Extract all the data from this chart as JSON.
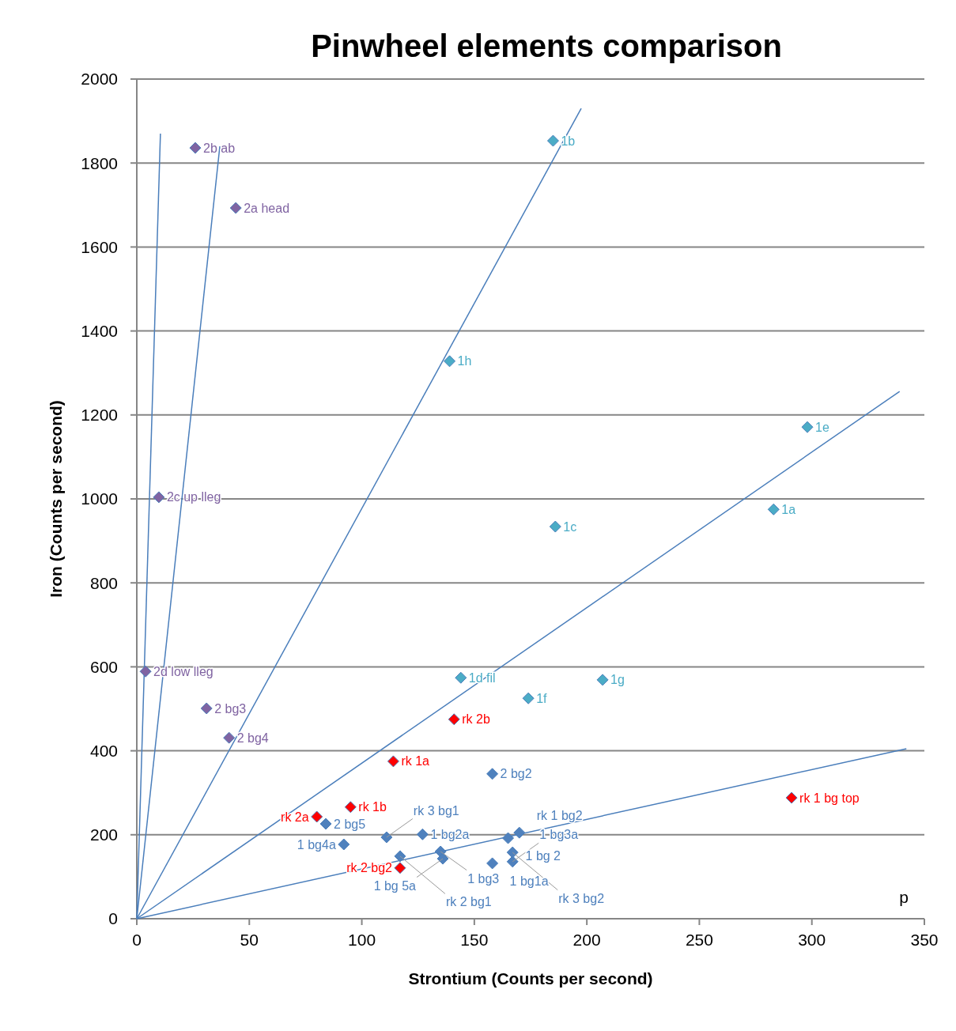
{
  "chart_data": {
    "type": "scatter",
    "title": "Pinwheel elements comparison",
    "xlabel": "Strontium (Counts per second)",
    "ylabel": "Iron (Counts per second)",
    "xlim": [
      0,
      350
    ],
    "xticks": [
      0,
      50,
      100,
      150,
      200,
      250,
      300,
      350
    ],
    "ylim": [
      0,
      2000
    ],
    "yticks": [
      0,
      200,
      400,
      600,
      800,
      1000,
      1200,
      1400,
      1600,
      1800,
      2000
    ],
    "grid": "y",
    "marker": "diamond",
    "series": [
      {
        "color": "#8064a2",
        "x": [
          26,
          44,
          9.8,
          3.9,
          31,
          41
        ],
        "values": [
          1836,
          1693,
          1004,
          589,
          501,
          431
        ]
      },
      {
        "color": "#4bacc6",
        "x": [
          185,
          139,
          298,
          283,
          186,
          144,
          207,
          174
        ],
        "values": [
          1853,
          1328,
          1171,
          975,
          934,
          574,
          569,
          525
        ]
      },
      {
        "color": "#ff0000",
        "x": [
          114,
          141,
          80,
          95,
          117,
          291
        ],
        "values": [
          375,
          475,
          243,
          266,
          121,
          288
        ]
      },
      {
        "color": "#4f81bd",
        "x": [
          158,
          84,
          92,
          127,
          135,
          136,
          158,
          165,
          167,
          111,
          117,
          170,
          167
        ],
        "values": [
          345,
          226,
          177,
          201,
          160,
          143,
          132,
          192,
          136,
          194,
          149,
          205,
          158
        ]
      },
      {
        "type": "line",
        "color": "#4a7ebb",
        "marker": "none",
        "x": [
          0,
          10.5
        ],
        "values": [
          0,
          1870
        ]
      },
      {
        "type": "line",
        "color": "#4a7ebb",
        "marker": "none",
        "x": [
          0,
          36.9
        ],
        "values": [
          0,
          1840
        ]
      },
      {
        "type": "line",
        "color": "#4a7ebb",
        "marker": "none",
        "x": [
          0,
          197.5
        ],
        "values": [
          0,
          1930
        ]
      },
      {
        "type": "line",
        "color": "#4a7ebb",
        "marker": "none",
        "x": [
          0,
          339
        ],
        "values": [
          0,
          1256
        ]
      },
      {
        "type": "line",
        "color": "#4a7ebb",
        "marker": "none",
        "x": [
          0,
          342
        ],
        "values": [
          0,
          405
        ]
      }
    ],
    "annotations": [
      {
        "text": "2b ab",
        "x": 26,
        "y": 1836
      },
      {
        "text": "2a head",
        "x": 44,
        "y": 1693
      },
      {
        "text": "2c up lleg",
        "x": 9.8,
        "y": 1004
      },
      {
        "text": "2d low lleg",
        "x": 3.9,
        "y": 589
      },
      {
        "text": "2 bg3",
        "x": 31,
        "y": 501
      },
      {
        "text": "2 bg4",
        "x": 41,
        "y": 431
      },
      {
        "text": "1b",
        "x": 185,
        "y": 1853
      },
      {
        "text": "1h",
        "x": 139,
        "y": 1328
      },
      {
        "text": "1e",
        "x": 298,
        "y": 1171
      },
      {
        "text": "1a",
        "x": 283,
        "y": 975
      },
      {
        "text": "1c",
        "x": 186,
        "y": 934
      },
      {
        "text": "1d fil",
        "x": 144,
        "y": 574
      },
      {
        "text": "1g",
        "x": 207,
        "y": 569
      },
      {
        "text": "1f",
        "x": 174,
        "y": 525
      },
      {
        "text": "rk 1a",
        "x": 114,
        "y": 375
      },
      {
        "text": "rk 2b",
        "x": 141,
        "y": 475
      },
      {
        "text": "rk 2a",
        "x": 80,
        "y": 243
      },
      {
        "text": "rk 1b",
        "x": 95,
        "y": 266
      },
      {
        "text": "rk 2 bg2",
        "x": 117,
        "y": 121
      },
      {
        "text": "rk 1 bg top",
        "x": 291,
        "y": 288
      },
      {
        "text": "2 bg2",
        "x": 158,
        "y": 345
      },
      {
        "text": "2 bg5",
        "x": 84,
        "y": 226
      },
      {
        "text": "1 bg4a",
        "x": 92,
        "y": 177
      },
      {
        "text": "1 bg2a",
        "x": 127,
        "y": 201
      },
      {
        "text": "1 bg3",
        "x": 135,
        "y": 160
      },
      {
        "text": "1 bg 5a",
        "x": 136,
        "y": 143
      },
      {
        "text": "1 bg1a",
        "x": 158,
        "y": 132
      },
      {
        "text": "1 bg 2",
        "x": 165,
        "y": 192
      },
      {
        "text": "1 bg3a",
        "x": 167,
        "y": 136
      },
      {
        "text": "rk 3 bg1",
        "x": 111,
        "y": 194
      },
      {
        "text": "rk 2 bg1",
        "x": 117,
        "y": 149
      },
      {
        "text": "rk 1 bg2",
        "x": 170,
        "y": 205
      },
      {
        "text": "rk 3 bg2",
        "x": 167,
        "y": 158
      },
      "p"
    ]
  }
}
